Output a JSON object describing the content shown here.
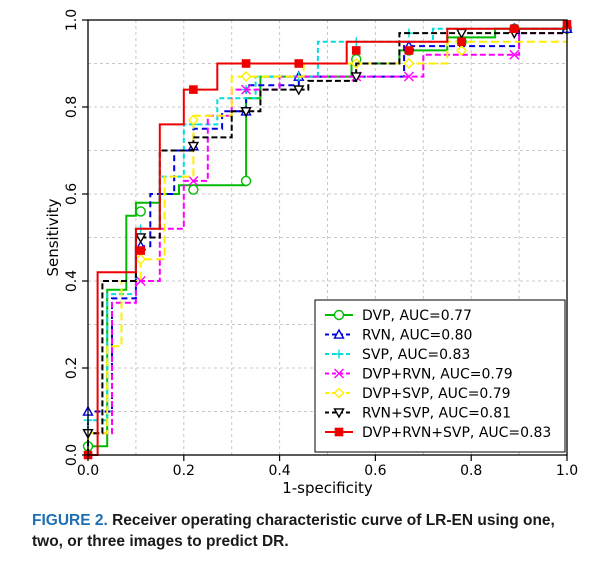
{
  "chart_data": {
    "type": "line",
    "title": "",
    "xlabel": "1-specificity",
    "ylabel": "Sensitivity",
    "xlim": [
      0,
      1
    ],
    "ylim": [
      0,
      1
    ],
    "xticks": [
      "0.0",
      "0.2",
      "0.4",
      "0.6",
      "0.8",
      "1.0"
    ],
    "yticks": [
      "0.0",
      "0.2",
      "0.4",
      "0.6",
      "0.8",
      "1.0"
    ],
    "grid": true,
    "legend_position": "bottom-right",
    "series": [
      {
        "name": "DVP",
        "label": "DVP, AUC=0.77",
        "color": "#00bb00",
        "dash": "solid",
        "marker": "circle",
        "x": [
          0,
          0,
          0.04,
          0.04,
          0.08,
          0.08,
          0.1,
          0.1,
          0.15,
          0.15,
          0.19,
          0.19,
          0.33,
          0.33,
          0.36,
          0.36,
          0.55,
          0.55,
          0.65,
          0.65,
          0.75,
          0.75,
          0.85,
          0.85,
          1.0
        ],
        "y": [
          0,
          0.02,
          0.02,
          0.38,
          0.38,
          0.55,
          0.55,
          0.58,
          0.58,
          0.6,
          0.6,
          0.62,
          0.62,
          0.82,
          0.82,
          0.87,
          0.87,
          0.9,
          0.9,
          0.93,
          0.93,
          0.96,
          0.96,
          0.98,
          0.98
        ],
        "marker_points": [
          [
            0,
            0.02
          ],
          [
            0.11,
            0.56
          ],
          [
            0.22,
            0.61
          ],
          [
            0.33,
            0.63
          ],
          [
            0.56,
            0.91
          ],
          [
            0.67,
            0.93
          ],
          [
            0.78,
            0.95
          ],
          [
            0.89,
            0.98
          ],
          [
            1.0,
            0.98
          ]
        ]
      },
      {
        "name": "RVN",
        "label": "RVN, AUC=0.80",
        "color": "#0000dd",
        "dash": "6,4",
        "marker": "triangle",
        "x": [
          0,
          0,
          0.05,
          0.05,
          0.1,
          0.1,
          0.13,
          0.13,
          0.18,
          0.18,
          0.22,
          0.22,
          0.28,
          0.28,
          0.33,
          0.33,
          0.44,
          0.44,
          0.66,
          0.66,
          0.9,
          0.9,
          1.0
        ],
        "y": [
          0,
          0.1,
          0.1,
          0.36,
          0.36,
          0.48,
          0.48,
          0.6,
          0.6,
          0.7,
          0.7,
          0.75,
          0.75,
          0.79,
          0.79,
          0.85,
          0.85,
          0.87,
          0.87,
          0.94,
          0.94,
          0.98,
          0.98
        ],
        "marker_points": [
          [
            0,
            0.1
          ],
          [
            0.11,
            0.48
          ],
          [
            0.22,
            0.71
          ],
          [
            0.33,
            0.79
          ],
          [
            0.44,
            0.87
          ],
          [
            0.67,
            0.94
          ],
          [
            0.89,
            0.98
          ],
          [
            1.0,
            0.98
          ]
        ]
      },
      {
        "name": "SVP",
        "label": "SVP, AUC=0.83",
        "color": "#00dddd",
        "dash": "5,3",
        "marker": "plus",
        "x": [
          0,
          0,
          0.04,
          0.04,
          0.1,
          0.1,
          0.15,
          0.15,
          0.2,
          0.2,
          0.27,
          0.27,
          0.35,
          0.35,
          0.48,
          0.48,
          0.72,
          0.72,
          1.0
        ],
        "y": [
          0,
          0.08,
          0.08,
          0.37,
          0.37,
          0.52,
          0.52,
          0.64,
          0.64,
          0.76,
          0.76,
          0.82,
          0.82,
          0.87,
          0.87,
          0.95,
          0.95,
          0.98,
          0.98
        ],
        "marker_points": [
          [
            0,
            0.08
          ],
          [
            0.11,
            0.52
          ],
          [
            0.22,
            0.76
          ],
          [
            0.33,
            0.84
          ],
          [
            0.44,
            0.87
          ],
          [
            0.56,
            0.95
          ],
          [
            0.67,
            0.97
          ],
          [
            0.89,
            0.98
          ]
        ]
      },
      {
        "name": "DVP+RVN",
        "label": "DVP+RVN, AUC=0.79",
        "color": "#ff00ff",
        "dash": "6,3",
        "marker": "x",
        "x": [
          0,
          0,
          0.05,
          0.05,
          0.1,
          0.1,
          0.15,
          0.15,
          0.2,
          0.2,
          0.25,
          0.25,
          0.3,
          0.3,
          0.4,
          0.4,
          0.7,
          0.7,
          0.9,
          0.9,
          1.0
        ],
        "y": [
          0,
          0.05,
          0.05,
          0.35,
          0.35,
          0.4,
          0.4,
          0.52,
          0.52,
          0.63,
          0.63,
          0.78,
          0.78,
          0.84,
          0.84,
          0.87,
          0.87,
          0.92,
          0.92,
          0.97,
          0.97
        ],
        "marker_points": [
          [
            0.11,
            0.4
          ],
          [
            0.22,
            0.63
          ],
          [
            0.33,
            0.84
          ],
          [
            0.56,
            0.87
          ],
          [
            0.67,
            0.87
          ],
          [
            0.89,
            0.92
          ]
        ]
      },
      {
        "name": "DVP+SVP",
        "label": "DVP+SVP, AUC=0.79",
        "color": "#ffee00",
        "dash": "8,4",
        "marker": "diamond",
        "x": [
          0,
          0,
          0.04,
          0.04,
          0.07,
          0.07,
          0.11,
          0.11,
          0.16,
          0.16,
          0.22,
          0.22,
          0.3,
          0.3,
          0.45,
          0.45,
          0.75,
          0.75,
          1.0
        ],
        "y": [
          0,
          0.05,
          0.05,
          0.25,
          0.25,
          0.4,
          0.4,
          0.45,
          0.45,
          0.64,
          0.64,
          0.78,
          0.78,
          0.87,
          0.87,
          0.9,
          0.9,
          0.95,
          0.95
        ],
        "marker_points": [
          [
            0.11,
            0.45
          ],
          [
            0.22,
            0.77
          ],
          [
            0.33,
            0.87
          ],
          [
            0.56,
            0.9
          ],
          [
            0.67,
            0.9
          ],
          [
            0.78,
            0.93
          ]
        ]
      },
      {
        "name": "RVN+SVP",
        "label": "RVN+SVP, AUC=0.81",
        "color": "#000000",
        "dash": "6,3",
        "marker": "triangle-down",
        "x": [
          0,
          0,
          0.03,
          0.03,
          0.1,
          0.1,
          0.15,
          0.15,
          0.22,
          0.22,
          0.3,
          0.3,
          0.36,
          0.36,
          0.46,
          0.46,
          0.56,
          0.56,
          0.65,
          0.65,
          1.0
        ],
        "y": [
          0,
          0.05,
          0.05,
          0.4,
          0.4,
          0.5,
          0.5,
          0.7,
          0.7,
          0.73,
          0.73,
          0.79,
          0.79,
          0.84,
          0.84,
          0.86,
          0.86,
          0.9,
          0.9,
          0.97,
          0.97
        ],
        "marker_points": [
          [
            0,
            0.05
          ],
          [
            0.11,
            0.5
          ],
          [
            0.22,
            0.71
          ],
          [
            0.33,
            0.79
          ],
          [
            0.44,
            0.84
          ],
          [
            0.56,
            0.87
          ],
          [
            0.78,
            0.97
          ],
          [
            0.89,
            0.97
          ]
        ]
      },
      {
        "name": "DVP+RVN+SVP",
        "label": "DVP+RVN+SVP, AUC=0.83",
        "color": "#ee0000",
        "dash": "solid",
        "marker": "square",
        "x": [
          0,
          0.02,
          0.02,
          0.1,
          0.1,
          0.15,
          0.15,
          0.2,
          0.2,
          0.27,
          0.27,
          0.54,
          0.54,
          0.75,
          0.75,
          1.0
        ],
        "y": [
          0,
          0,
          0.42,
          0.42,
          0.52,
          0.52,
          0.76,
          0.76,
          0.84,
          0.84,
          0.9,
          0.9,
          0.95,
          0.95,
          0.98,
          0.98
        ],
        "marker_points": [
          [
            0,
            0
          ],
          [
            0.11,
            0.47
          ],
          [
            0.22,
            0.84
          ],
          [
            0.33,
            0.9
          ],
          [
            0.44,
            0.9
          ],
          [
            0.56,
            0.93
          ],
          [
            0.67,
            0.93
          ],
          [
            0.78,
            0.95
          ],
          [
            0.89,
            0.98
          ],
          [
            1.0,
            0.99
          ]
        ]
      }
    ]
  },
  "caption": {
    "label": "FIGURE 2.",
    "text": "Receiver operating characteristic curve of LR-EN using one, two, or three images to predict DR."
  }
}
